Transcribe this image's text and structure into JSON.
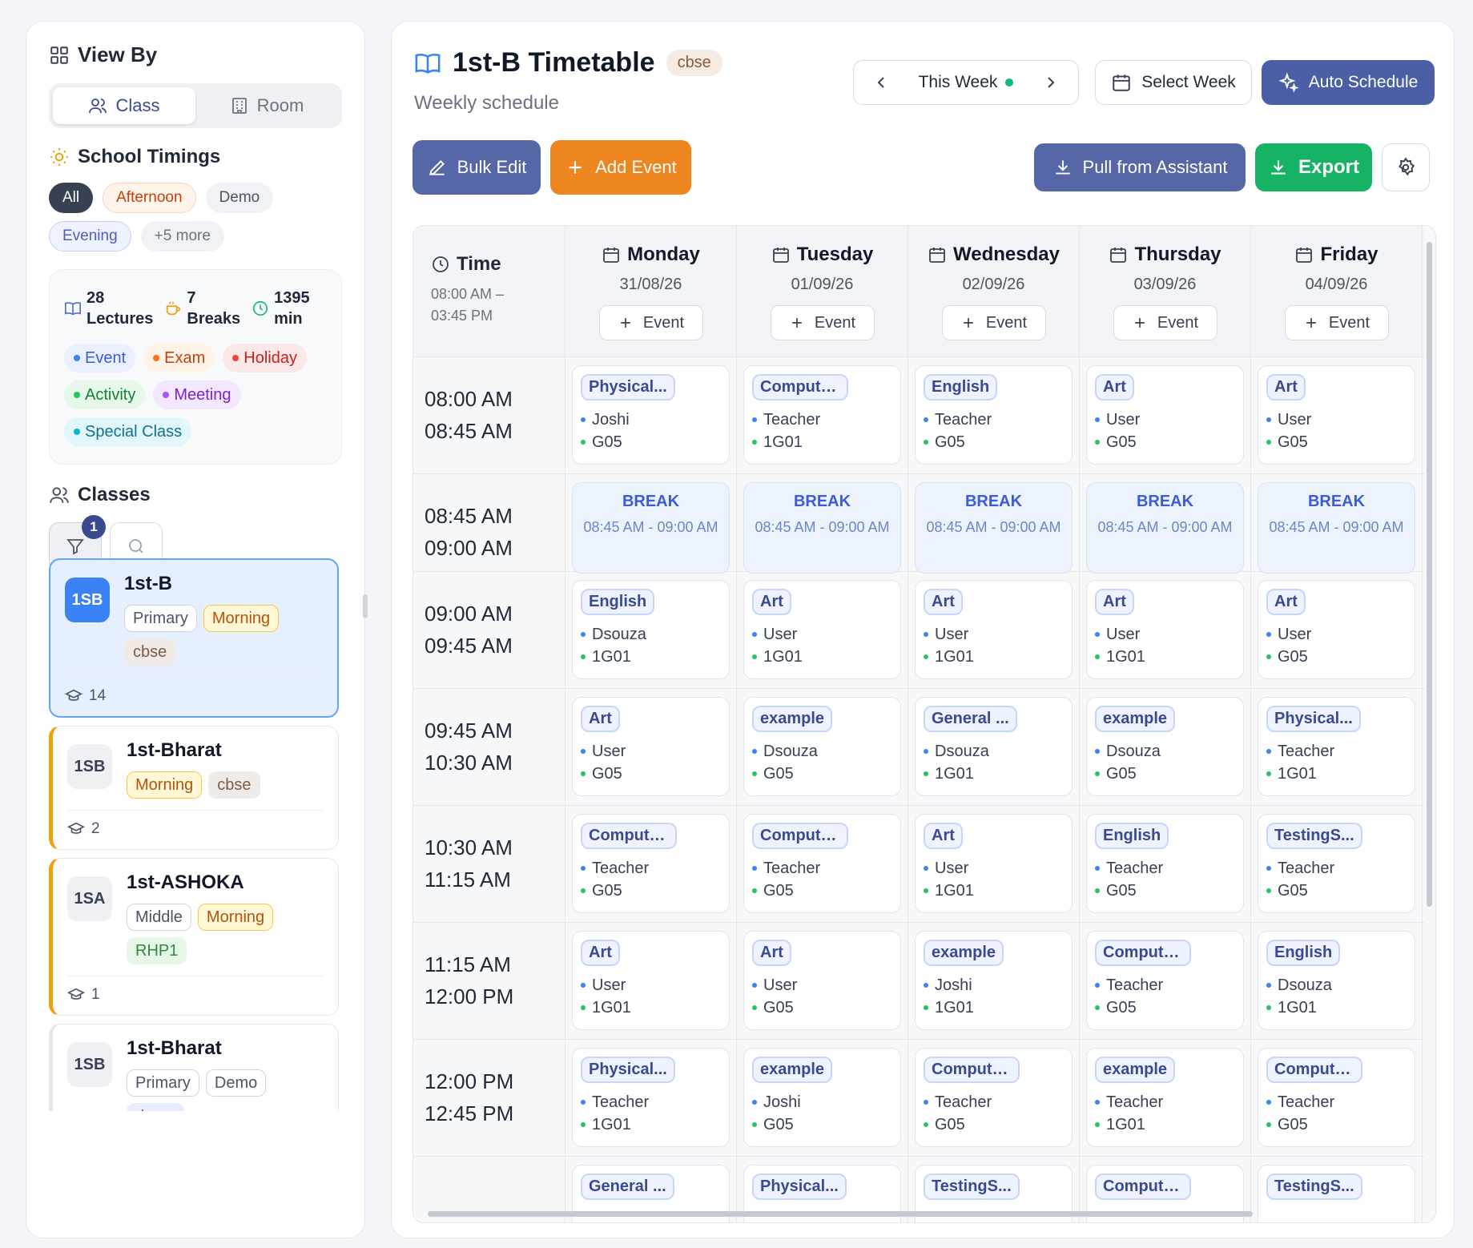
{
  "sidebar": {
    "view_by": "View By",
    "view_options": [
      "Class",
      "Room"
    ],
    "school_timings": "School Timings",
    "timing_chips": [
      "All",
      "Afternoon",
      "Demo",
      "Evening",
      "+5 more"
    ],
    "stats": {
      "lectures_count": "28",
      "lectures_label": "Lectures",
      "breaks_count": "7",
      "breaks_label": "Breaks",
      "minutes_count": "1395",
      "minutes_label": "min"
    },
    "legend": [
      {
        "label": "Event",
        "color": "#3b82f6",
        "bg": "#eaf0ff",
        "fg": "#3b5bdb"
      },
      {
        "label": "Exam",
        "color": "#f97316",
        "bg": "#fff2e6",
        "fg": "#c2410c"
      },
      {
        "label": "Holiday",
        "color": "#ef4444",
        "bg": "#fde8e8",
        "fg": "#c81e1e"
      },
      {
        "label": "Activity",
        "color": "#22c55e",
        "bg": "#e6f8ea",
        "fg": "#15803d"
      },
      {
        "label": "Meeting",
        "color": "#a855f7",
        "bg": "#f3e8ff",
        "fg": "#7e22ce"
      },
      {
        "label": "Special Class",
        "color": "#06b6d4",
        "bg": "#e2f7fb",
        "fg": "#0e7490"
      }
    ],
    "classes_heading": "Classes",
    "filter_badge": "1",
    "classes": [
      {
        "abbr": "1SB",
        "name": "1st-B",
        "tags": [
          "Primary",
          "Morning",
          "cbse"
        ],
        "students": "14"
      },
      {
        "abbr": "1SB",
        "name": "1st-Bharat",
        "tags": [
          "Morning",
          "cbse"
        ],
        "students": "2"
      },
      {
        "abbr": "1SA",
        "name": "1st-ASHOKA",
        "tags": [
          "Middle",
          "Morning",
          "RHP1"
        ],
        "students": "1"
      },
      {
        "abbr": "1SB",
        "name": "1st-Bharat",
        "tags": [
          "Primary",
          "Demo",
          "demo"
        ],
        "students": ""
      }
    ]
  },
  "main": {
    "title": "1st-B Timetable",
    "board": "cbse",
    "subtitle": "Weekly schedule",
    "week_label": "This Week",
    "select_week": "Select Week",
    "auto_schedule": "Auto Schedule",
    "bulk_edit": "Bulk Edit",
    "add_event": "Add Event",
    "pull_assistant": "Pull from Assistant",
    "export": "Export"
  },
  "timetable": {
    "time_header": "Time",
    "time_range_start": "08:00 AM –",
    "time_range_end": "03:45 PM",
    "event_button": "Event",
    "days": [
      {
        "name": "Monday",
        "date": "31/08/26"
      },
      {
        "name": "Tuesday",
        "date": "01/09/26"
      },
      {
        "name": "Wednesday",
        "date": "02/09/26"
      },
      {
        "name": "Thursday",
        "date": "03/09/26"
      },
      {
        "name": "Friday",
        "date": "04/09/26"
      }
    ],
    "break_label": "BREAK",
    "break_time": "08:45 AM - 09:00 AM",
    "rows": [
      {
        "start": "08:00 AM",
        "end": "08:45 AM",
        "cells": [
          {
            "subject": "Physical...",
            "teacher": "Joshi",
            "room": "G05"
          },
          {
            "subject": "Computer...",
            "teacher": "Teacher",
            "room": "1G01"
          },
          {
            "subject": "English",
            "teacher": "Teacher",
            "room": "G05"
          },
          {
            "subject": "Art",
            "teacher": "User",
            "room": "G05"
          },
          {
            "subject": "Art",
            "teacher": "User",
            "room": "G05"
          }
        ]
      },
      {
        "start": "08:45 AM",
        "end": "09:00 AM",
        "break": true
      },
      {
        "start": "09:00 AM",
        "end": "09:45 AM",
        "cells": [
          {
            "subject": "English",
            "teacher": "Dsouza",
            "room": "1G01"
          },
          {
            "subject": "Art",
            "teacher": "User",
            "room": "1G01"
          },
          {
            "subject": "Art",
            "teacher": "User",
            "room": "1G01"
          },
          {
            "subject": "Art",
            "teacher": "User",
            "room": "1G01"
          },
          {
            "subject": "Art",
            "teacher": "User",
            "room": "G05"
          }
        ]
      },
      {
        "start": "09:45 AM",
        "end": "10:30 AM",
        "cells": [
          {
            "subject": "Art",
            "teacher": "User",
            "room": "G05"
          },
          {
            "subject": "example",
            "teacher": "Dsouza",
            "room": "G05"
          },
          {
            "subject": "General ...",
            "teacher": "Dsouza",
            "room": "1G01"
          },
          {
            "subject": "example",
            "teacher": "Dsouza",
            "room": "G05"
          },
          {
            "subject": "Physical...",
            "teacher": "Teacher",
            "room": "1G01"
          }
        ]
      },
      {
        "start": "10:30 AM",
        "end": "11:15 AM",
        "cells": [
          {
            "subject": "Computer...",
            "teacher": "Teacher",
            "room": "G05"
          },
          {
            "subject": "Computer...",
            "teacher": "Teacher",
            "room": "G05"
          },
          {
            "subject": "Art",
            "teacher": "User",
            "room": "1G01"
          },
          {
            "subject": "English",
            "teacher": "Teacher",
            "room": "G05"
          },
          {
            "subject": "TestingS...",
            "teacher": "Teacher",
            "room": "G05"
          }
        ]
      },
      {
        "start": "11:15 AM",
        "end": "12:00 PM",
        "cells": [
          {
            "subject": "Art",
            "teacher": "User",
            "room": "1G01"
          },
          {
            "subject": "Art",
            "teacher": "User",
            "room": "G05"
          },
          {
            "subject": "example",
            "teacher": "Joshi",
            "room": "1G01"
          },
          {
            "subject": "Computer...",
            "teacher": "Teacher",
            "room": "G05"
          },
          {
            "subject": "English",
            "teacher": "Dsouza",
            "room": "1G01"
          }
        ]
      },
      {
        "start": "12:00 PM",
        "end": "12:45 PM",
        "cells": [
          {
            "subject": "Physical...",
            "teacher": "Teacher",
            "room": "1G01"
          },
          {
            "subject": "example",
            "teacher": "Joshi",
            "room": "G05"
          },
          {
            "subject": "Computer...",
            "teacher": "Teacher",
            "room": "G05"
          },
          {
            "subject": "example",
            "teacher": "Teacher",
            "room": "1G01"
          },
          {
            "subject": "Computer...",
            "teacher": "Teacher",
            "room": "G05"
          }
        ]
      },
      {
        "start": "",
        "end": "",
        "cells": [
          {
            "subject": "General ...",
            "teacher": "",
            "room": ""
          },
          {
            "subject": "Physical...",
            "teacher": "",
            "room": ""
          },
          {
            "subject": "TestingS...",
            "teacher": "",
            "room": ""
          },
          {
            "subject": "Computer...",
            "teacher": "",
            "room": ""
          },
          {
            "subject": "TestingS...",
            "teacher": "",
            "room": ""
          }
        ]
      }
    ]
  }
}
